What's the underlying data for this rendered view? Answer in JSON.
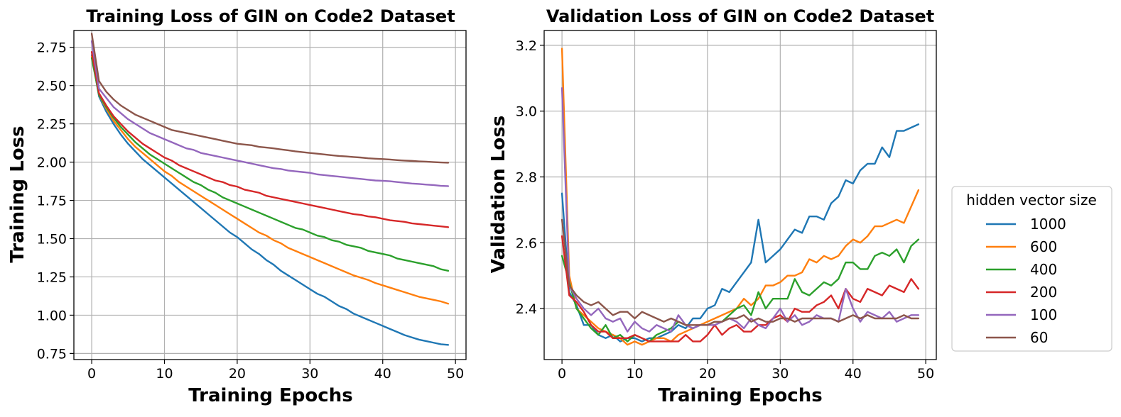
{
  "chart_data": [
    {
      "type": "line",
      "title": "Training Loss of GIN on Code2 Dataset",
      "xlabel": "Training Epochs",
      "ylabel": "Training Loss",
      "xlim": [
        -2.45,
        51.45
      ],
      "ylim": [
        0.71,
        2.86
      ],
      "xticks": [
        0,
        10,
        20,
        30,
        40,
        50
      ],
      "yticks": [
        0.75,
        1.0,
        1.25,
        1.5,
        1.75,
        2.0,
        2.25,
        2.5,
        2.75
      ],
      "ytick_labels": [
        "0.75",
        "1.00",
        "1.25",
        "1.50",
        "1.75",
        "2.00",
        "2.25",
        "2.50",
        "2.75"
      ],
      "grid": true,
      "x": [
        0,
        1,
        2,
        3,
        4,
        5,
        6,
        7,
        8,
        9,
        10,
        11,
        12,
        13,
        14,
        15,
        16,
        17,
        18,
        19,
        20,
        21,
        22,
        23,
        24,
        25,
        26,
        27,
        28,
        29,
        30,
        31,
        32,
        33,
        34,
        35,
        36,
        37,
        38,
        39,
        40,
        41,
        42,
        43,
        44,
        45,
        46,
        47,
        48,
        49
      ],
      "series": [
        {
          "name": "1000",
          "color": "#1f77b4",
          "values": [
            2.7,
            2.43,
            2.33,
            2.25,
            2.18,
            2.12,
            2.07,
            2.02,
            1.98,
            1.94,
            1.9,
            1.86,
            1.82,
            1.78,
            1.74,
            1.7,
            1.66,
            1.62,
            1.58,
            1.54,
            1.51,
            1.47,
            1.43,
            1.4,
            1.36,
            1.33,
            1.29,
            1.26,
            1.23,
            1.2,
            1.17,
            1.14,
            1.12,
            1.09,
            1.06,
            1.04,
            1.01,
            0.99,
            0.97,
            0.95,
            0.93,
            0.91,
            0.89,
            0.87,
            0.855,
            0.84,
            0.83,
            0.82,
            0.81,
            0.806
          ]
        },
        {
          "name": "600",
          "color": "#ff7f0e",
          "values": [
            2.69,
            2.44,
            2.35,
            2.27,
            2.21,
            2.15,
            2.1,
            2.06,
            2.02,
            1.98,
            1.94,
            1.91,
            1.87,
            1.84,
            1.81,
            1.78,
            1.75,
            1.72,
            1.69,
            1.66,
            1.63,
            1.6,
            1.57,
            1.54,
            1.52,
            1.49,
            1.47,
            1.44,
            1.42,
            1.4,
            1.38,
            1.36,
            1.34,
            1.32,
            1.3,
            1.28,
            1.26,
            1.245,
            1.23,
            1.21,
            1.195,
            1.18,
            1.165,
            1.15,
            1.135,
            1.12,
            1.11,
            1.1,
            1.09,
            1.075
          ]
        },
        {
          "name": "400",
          "color": "#2ca02c",
          "values": [
            2.68,
            2.44,
            2.36,
            2.29,
            2.23,
            2.18,
            2.13,
            2.09,
            2.05,
            2.02,
            1.99,
            1.96,
            1.93,
            1.9,
            1.87,
            1.85,
            1.82,
            1.8,
            1.77,
            1.75,
            1.73,
            1.71,
            1.69,
            1.67,
            1.65,
            1.63,
            1.61,
            1.59,
            1.57,
            1.56,
            1.54,
            1.52,
            1.51,
            1.49,
            1.48,
            1.46,
            1.45,
            1.44,
            1.42,
            1.41,
            1.4,
            1.39,
            1.37,
            1.36,
            1.35,
            1.34,
            1.33,
            1.32,
            1.3,
            1.29
          ]
        },
        {
          "name": "200",
          "color": "#d62728",
          "values": [
            2.72,
            2.45,
            2.37,
            2.3,
            2.25,
            2.2,
            2.16,
            2.12,
            2.09,
            2.06,
            2.03,
            2.01,
            1.98,
            1.96,
            1.94,
            1.92,
            1.9,
            1.88,
            1.87,
            1.85,
            1.84,
            1.82,
            1.81,
            1.8,
            1.78,
            1.77,
            1.76,
            1.75,
            1.74,
            1.73,
            1.72,
            1.71,
            1.7,
            1.69,
            1.68,
            1.67,
            1.66,
            1.655,
            1.645,
            1.64,
            1.63,
            1.62,
            1.615,
            1.61,
            1.6,
            1.595,
            1.59,
            1.585,
            1.58,
            1.575
          ]
        },
        {
          "name": "100",
          "color": "#9467bd",
          "values": [
            2.79,
            2.48,
            2.42,
            2.36,
            2.32,
            2.28,
            2.25,
            2.22,
            2.19,
            2.17,
            2.15,
            2.13,
            2.11,
            2.09,
            2.08,
            2.06,
            2.05,
            2.04,
            2.03,
            2.02,
            2.01,
            2.0,
            1.99,
            1.98,
            1.97,
            1.96,
            1.955,
            1.945,
            1.94,
            1.935,
            1.93,
            1.92,
            1.915,
            1.91,
            1.905,
            1.9,
            1.895,
            1.89,
            1.885,
            1.88,
            1.878,
            1.875,
            1.87,
            1.865,
            1.86,
            1.857,
            1.853,
            1.85,
            1.845,
            1.843
          ]
        },
        {
          "name": "60",
          "color": "#8c564b",
          "values": [
            2.84,
            2.53,
            2.46,
            2.41,
            2.37,
            2.34,
            2.31,
            2.29,
            2.27,
            2.25,
            2.23,
            2.21,
            2.2,
            2.19,
            2.18,
            2.17,
            2.16,
            2.15,
            2.14,
            2.13,
            2.12,
            2.115,
            2.11,
            2.1,
            2.095,
            2.09,
            2.083,
            2.077,
            2.07,
            2.065,
            2.06,
            2.055,
            2.05,
            2.045,
            2.04,
            2.037,
            2.033,
            2.03,
            2.025,
            2.022,
            2.02,
            2.017,
            2.013,
            2.01,
            2.008,
            2.005,
            2.003,
            2.0,
            1.998,
            1.996
          ]
        }
      ]
    },
    {
      "type": "line",
      "title": "Validation Loss of GIN on Code2 Dataset",
      "xlabel": "Training Epochs",
      "ylabel": "Validation Loss",
      "xlim": [
        -2.45,
        51.45
      ],
      "ylim": [
        2.245,
        3.245
      ],
      "xticks": [
        0,
        10,
        20,
        30,
        40,
        50
      ],
      "yticks": [
        2.4,
        2.6,
        2.8,
        3.0,
        3.2
      ],
      "ytick_labels": [
        "2.4",
        "2.6",
        "2.8",
        "3.0",
        "3.2"
      ],
      "grid": true,
      "x": [
        0,
        1,
        2,
        3,
        4,
        5,
        6,
        7,
        8,
        9,
        10,
        11,
        12,
        13,
        14,
        15,
        16,
        17,
        18,
        19,
        20,
        21,
        22,
        23,
        24,
        25,
        26,
        27,
        28,
        29,
        30,
        31,
        32,
        33,
        34,
        35,
        36,
        37,
        38,
        39,
        40,
        41,
        42,
        43,
        44,
        45,
        46,
        47,
        48,
        49
      ],
      "series": [
        {
          "name": "1000",
          "color": "#1f77b4",
          "values": [
            2.75,
            2.45,
            2.41,
            2.35,
            2.35,
            2.32,
            2.31,
            2.32,
            2.3,
            2.31,
            2.31,
            2.3,
            2.31,
            2.31,
            2.32,
            2.33,
            2.35,
            2.34,
            2.37,
            2.37,
            2.4,
            2.41,
            2.46,
            2.45,
            2.48,
            2.51,
            2.54,
            2.67,
            2.54,
            2.56,
            2.58,
            2.61,
            2.64,
            2.63,
            2.68,
            2.68,
            2.67,
            2.72,
            2.74,
            2.79,
            2.78,
            2.82,
            2.84,
            2.84,
            2.89,
            2.86,
            2.94,
            2.94,
            2.95,
            2.96
          ]
        },
        {
          "name": "600",
          "color": "#ff7f0e",
          "values": [
            3.19,
            2.5,
            2.4,
            2.38,
            2.36,
            2.34,
            2.33,
            2.32,
            2.31,
            2.29,
            2.3,
            2.29,
            2.3,
            2.31,
            2.31,
            2.3,
            2.32,
            2.33,
            2.34,
            2.35,
            2.36,
            2.37,
            2.38,
            2.39,
            2.4,
            2.43,
            2.41,
            2.43,
            2.47,
            2.47,
            2.48,
            2.5,
            2.5,
            2.51,
            2.55,
            2.54,
            2.56,
            2.55,
            2.56,
            2.59,
            2.61,
            2.6,
            2.62,
            2.65,
            2.65,
            2.66,
            2.67,
            2.66,
            2.71,
            2.76
          ]
        },
        {
          "name": "400",
          "color": "#2ca02c",
          "values": [
            2.56,
            2.48,
            2.4,
            2.37,
            2.34,
            2.32,
            2.35,
            2.31,
            2.32,
            2.3,
            2.32,
            2.31,
            2.3,
            2.32,
            2.33,
            2.34,
            2.36,
            2.35,
            2.34,
            2.35,
            2.35,
            2.36,
            2.36,
            2.38,
            2.4,
            2.41,
            2.38,
            2.45,
            2.4,
            2.43,
            2.43,
            2.43,
            2.49,
            2.45,
            2.44,
            2.46,
            2.48,
            2.47,
            2.49,
            2.54,
            2.54,
            2.52,
            2.52,
            2.56,
            2.57,
            2.56,
            2.58,
            2.54,
            2.59,
            2.61
          ]
        },
        {
          "name": "200",
          "color": "#d62728",
          "values": [
            2.62,
            2.44,
            2.42,
            2.39,
            2.35,
            2.33,
            2.33,
            2.31,
            2.31,
            2.31,
            2.32,
            2.31,
            2.3,
            2.3,
            2.3,
            2.3,
            2.3,
            2.32,
            2.3,
            2.3,
            2.32,
            2.35,
            2.32,
            2.34,
            2.35,
            2.33,
            2.33,
            2.35,
            2.35,
            2.37,
            2.38,
            2.36,
            2.4,
            2.39,
            2.39,
            2.41,
            2.42,
            2.44,
            2.4,
            2.46,
            2.43,
            2.42,
            2.46,
            2.45,
            2.44,
            2.47,
            2.46,
            2.45,
            2.49,
            2.46
          ]
        },
        {
          "name": "100",
          "color": "#9467bd",
          "values": [
            3.07,
            2.47,
            2.43,
            2.4,
            2.38,
            2.4,
            2.37,
            2.36,
            2.37,
            2.33,
            2.36,
            2.34,
            2.33,
            2.35,
            2.34,
            2.33,
            2.38,
            2.35,
            2.34,
            2.35,
            2.35,
            2.35,
            2.36,
            2.37,
            2.36,
            2.34,
            2.37,
            2.35,
            2.34,
            2.37,
            2.4,
            2.36,
            2.38,
            2.35,
            2.36,
            2.38,
            2.37,
            2.37,
            2.36,
            2.46,
            2.4,
            2.36,
            2.39,
            2.38,
            2.37,
            2.39,
            2.36,
            2.37,
            2.38,
            2.38
          ]
        },
        {
          "name": "60",
          "color": "#8c564b",
          "values": [
            2.67,
            2.47,
            2.44,
            2.42,
            2.41,
            2.42,
            2.4,
            2.38,
            2.39,
            2.39,
            2.37,
            2.39,
            2.38,
            2.37,
            2.36,
            2.37,
            2.36,
            2.35,
            2.35,
            2.35,
            2.35,
            2.36,
            2.36,
            2.37,
            2.37,
            2.38,
            2.36,
            2.37,
            2.36,
            2.36,
            2.37,
            2.37,
            2.36,
            2.37,
            2.37,
            2.37,
            2.37,
            2.37,
            2.36,
            2.37,
            2.38,
            2.37,
            2.38,
            2.37,
            2.37,
            2.37,
            2.37,
            2.38,
            2.37,
            2.37
          ]
        }
      ]
    }
  ],
  "legend": {
    "title": "hidden vector size",
    "position": "right",
    "entries": [
      "1000",
      "600",
      "400",
      "200",
      "100",
      "60"
    ]
  }
}
